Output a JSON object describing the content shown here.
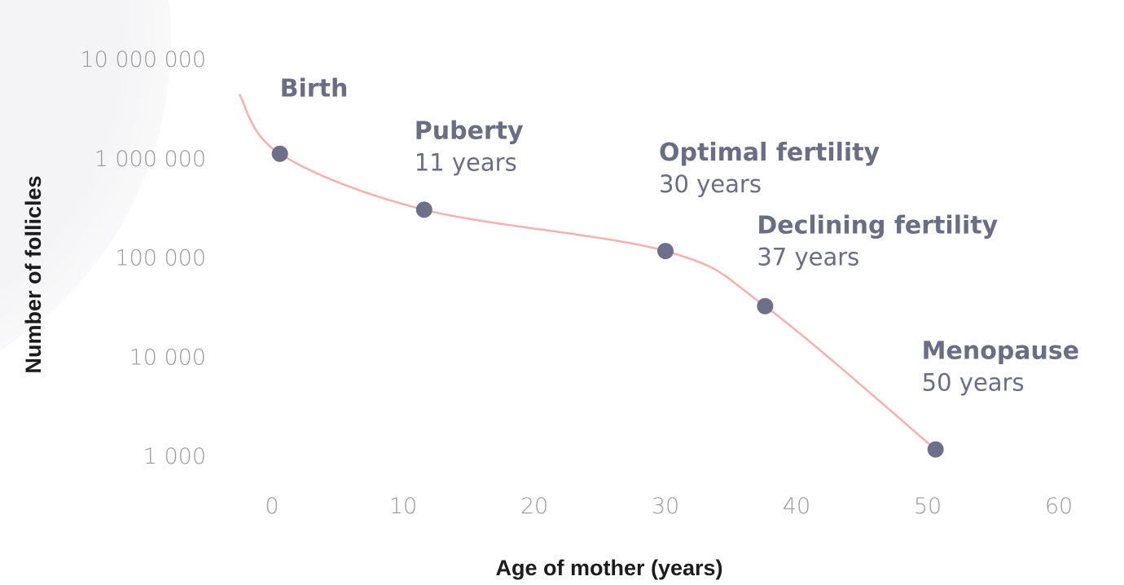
{
  "chart_data": {
    "type": "line",
    "xlabel": "Age of mother (years)",
    "ylabel": "Number of follicles",
    "x_scale": "linear",
    "y_scale": "log",
    "xlim": [
      -2.5,
      60
    ],
    "ylim": [
      1000,
      10000000
    ],
    "x_ticks": [
      "0",
      "10",
      "20",
      "30",
      "40",
      "50",
      "60"
    ],
    "x_tick_values": [
      0,
      10,
      20,
      30,
      40,
      50,
      60
    ],
    "y_ticks": [
      "10 000 000",
      "1 000 000",
      "100 000",
      "10 000",
      "1 000"
    ],
    "y_tick_values": [
      10000000,
      1000000,
      100000,
      10000,
      1000
    ],
    "grid": false,
    "curve": [
      [
        -2.5,
        4400000
      ],
      [
        0.6,
        1100000
      ],
      [
        11.6,
        300000
      ],
      [
        30,
        115000
      ],
      [
        37.6,
        32000
      ],
      [
        50.6,
        1150
      ]
    ],
    "points": [
      {
        "x": 0.6,
        "y": 1100000,
        "label": "Birth",
        "sublabel": ""
      },
      {
        "x": 11.6,
        "y": 300000,
        "label": "Puberty",
        "sublabel": "11 years"
      },
      {
        "x": 30,
        "y": 115000,
        "label": "Optimal fertility",
        "sublabel": "30 years"
      },
      {
        "x": 37.6,
        "y": 32000,
        "label": "Declining fertility",
        "sublabel": "37 years"
      },
      {
        "x": 50.6,
        "y": 1150,
        "label": "Menopause",
        "sublabel": "50 years"
      }
    ],
    "colors": {
      "line": "#f4b1b1",
      "point": "#6e7089",
      "label": "#6b6d85",
      "background_circle": "#f6f6f8"
    }
  }
}
